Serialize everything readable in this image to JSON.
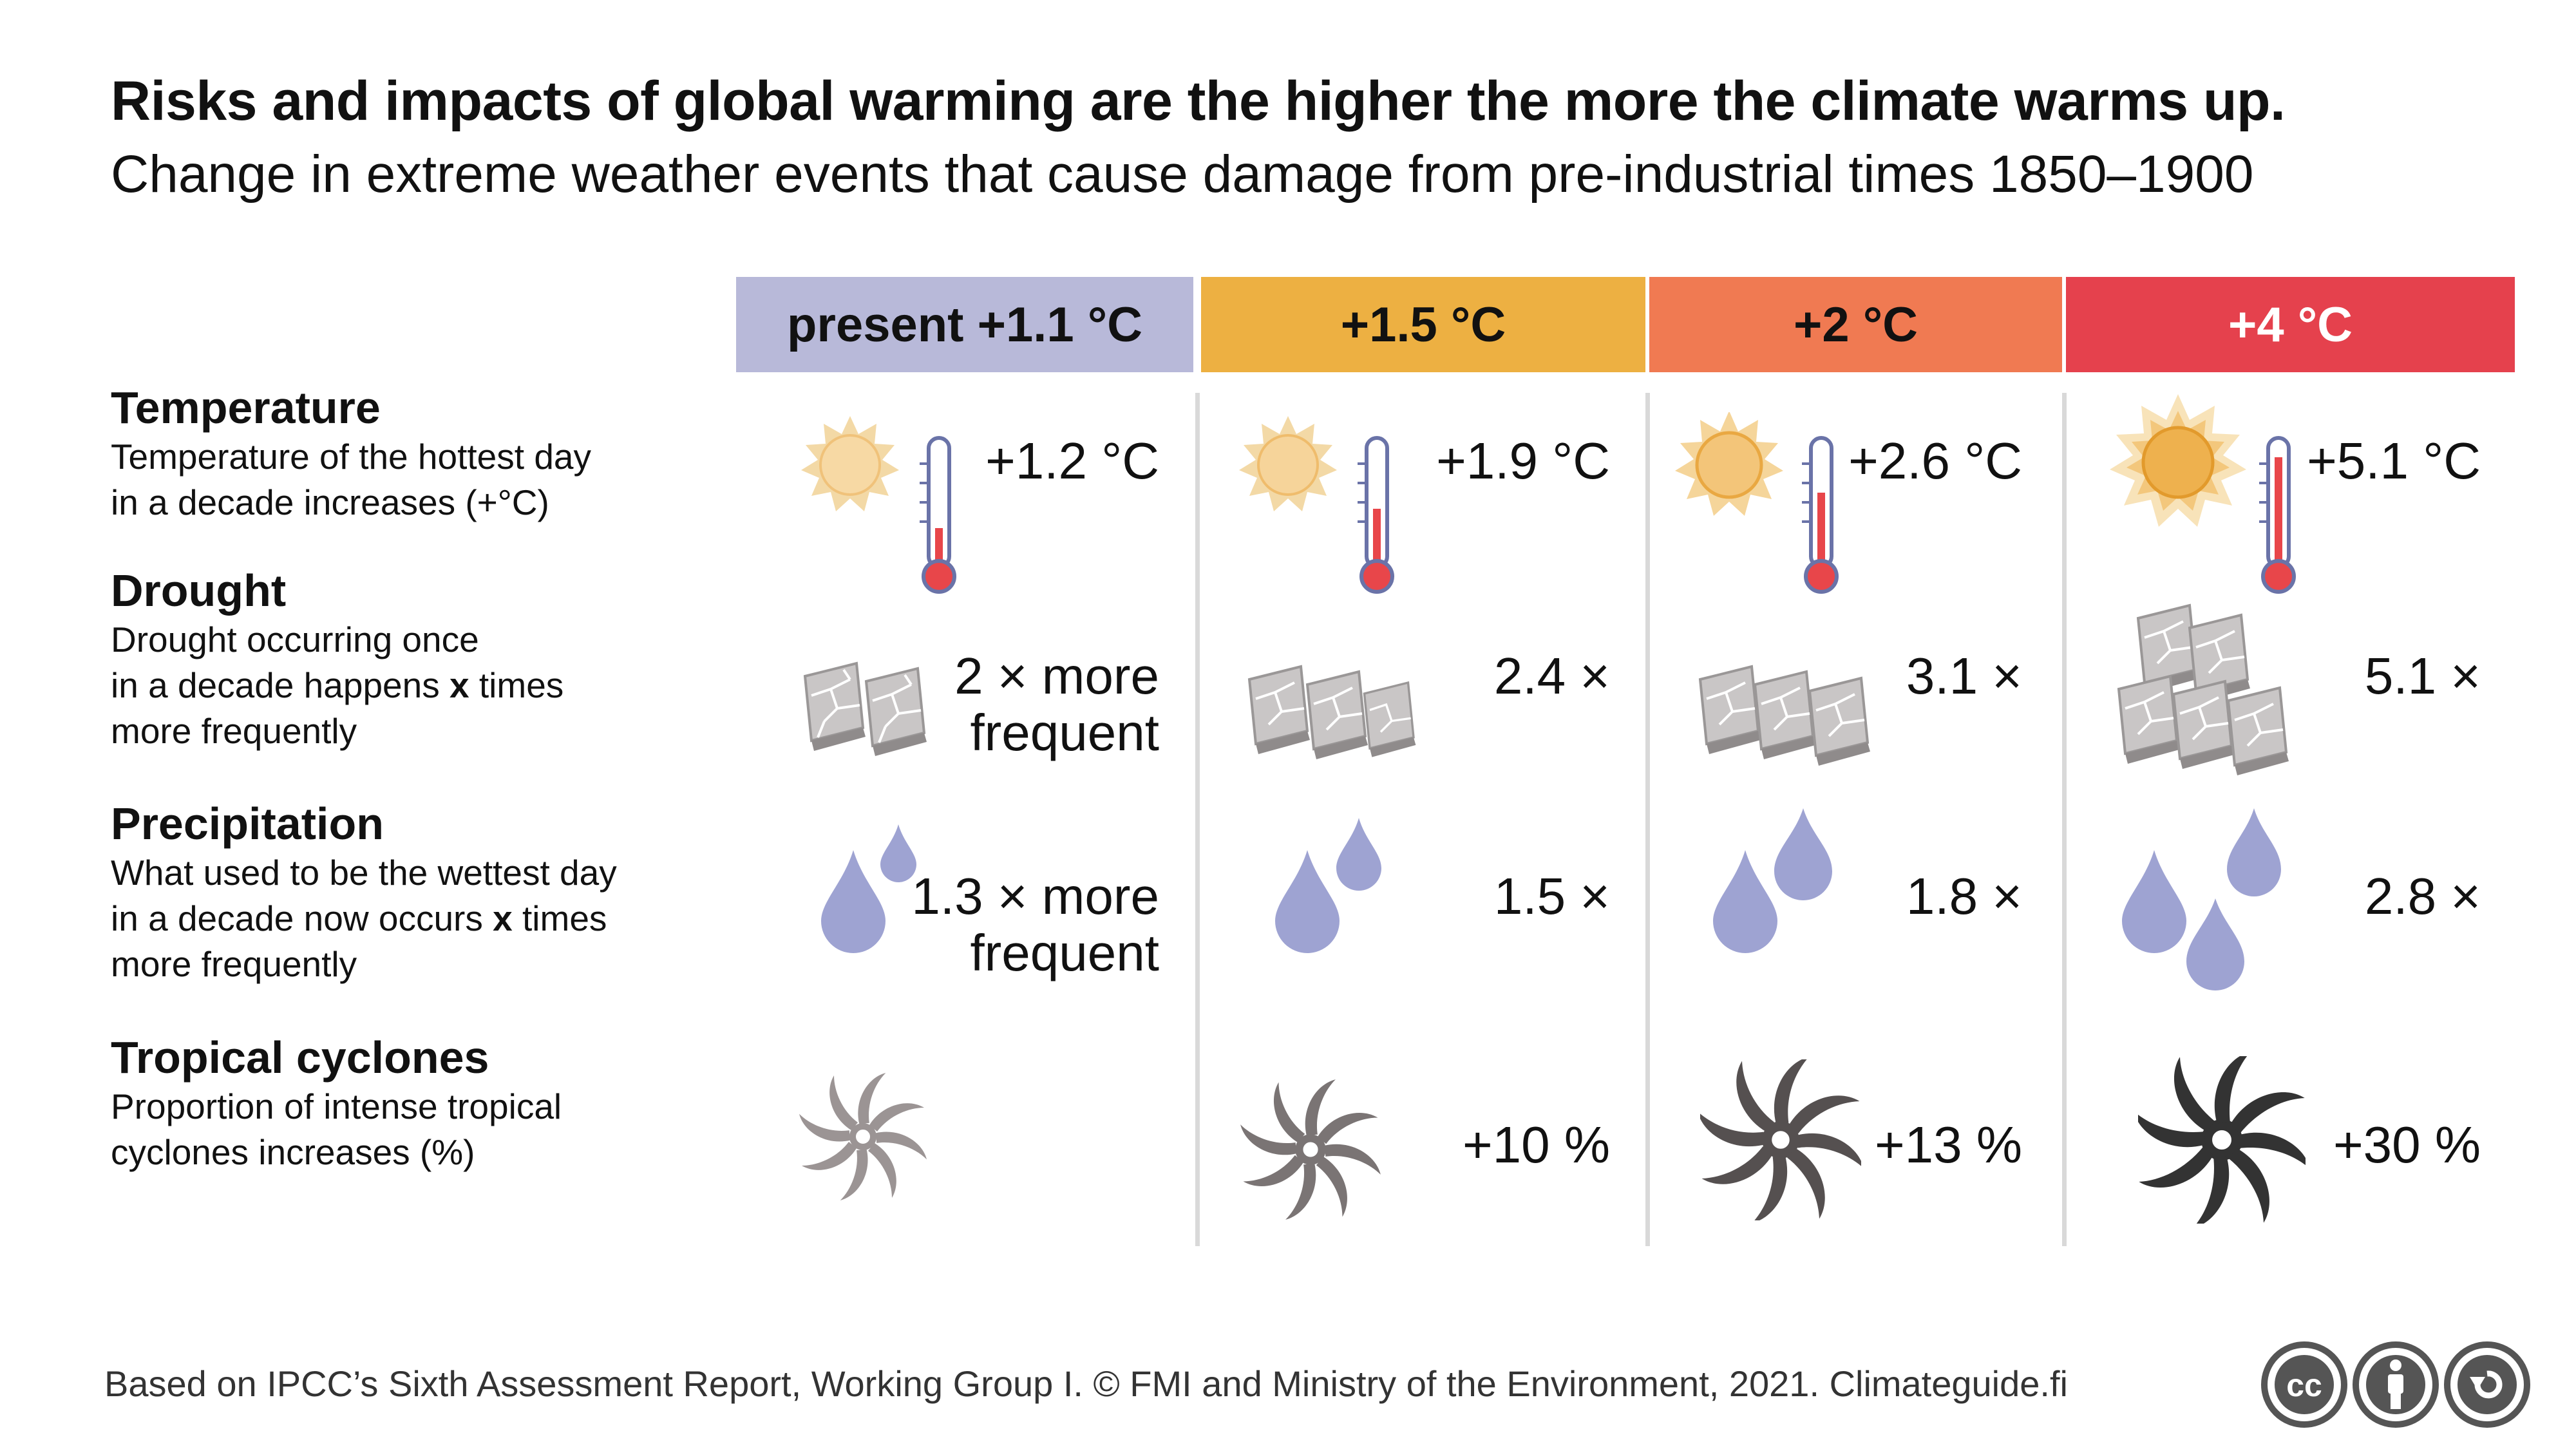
{
  "title": "Risks and impacts of global warming are the higher the more the climate warms up.",
  "subtitle": "Change in extreme weather events that cause damage from pre-industrial times 1850–1900",
  "columns": [
    {
      "label": "present +1.1 °C",
      "color": "#b8b9d9",
      "text_color": "#111111"
    },
    {
      "label": "+1.5 °C",
      "color": "#edb042",
      "text_color": "#111111"
    },
    {
      "label": "+2 °C",
      "color": "#f07a52",
      "text_color": "#111111"
    },
    {
      "label": "+4 °C",
      "color": "#e5414d",
      "text_color": "#ffffff"
    }
  ],
  "rows": [
    {
      "name": "Temperature",
      "description": [
        "Temperature of the hottest day",
        "in a decade increases (+°C)"
      ],
      "icon": "sun-thermometer-icon",
      "values": [
        "+1.2 °C",
        "+1.9 °C",
        "+2.6 °C",
        "+5.1 °C"
      ]
    },
    {
      "name": "Drought",
      "description": [
        "Drought occurring once",
        "in a decade happens x times",
        "more frequently"
      ],
      "icon": "cracked-earth-icon",
      "values": [
        "2 × more\nfrequent",
        "2.4 ×",
        "3.1 ×",
        "5.1 ×"
      ]
    },
    {
      "name": "Precipitation",
      "description": [
        "What used to be the wettest day",
        "in a decade now occurs x times",
        "more frequently"
      ],
      "icon": "raindrop-icon",
      "values": [
        "1.3 × more\nfrequent",
        "1.5 ×",
        "1.8 ×",
        "2.8 ×"
      ]
    },
    {
      "name": "Tropical cyclones",
      "description": [
        "Proportion of intense tropical",
        "cyclones increases (%)"
      ],
      "icon": "cyclone-icon",
      "values": [
        "",
        "+10 %",
        "+13 %",
        "+30 %"
      ]
    }
  ],
  "footer": "Based on IPCC’s Sixth Assessment Report, Working Group I. © FMI and Ministry of the Environment, 2021. Climateguide.fi",
  "license_icons": [
    "cc-icon",
    "attribution-icon",
    "share-alike-icon"
  ],
  "colors": {
    "drop": "#9ea3d2",
    "sun_core": "#f5cc8a",
    "thermo_red": "#e8464a",
    "cyclone_light": "#9b9494",
    "cyclone_dark": "#333333"
  }
}
